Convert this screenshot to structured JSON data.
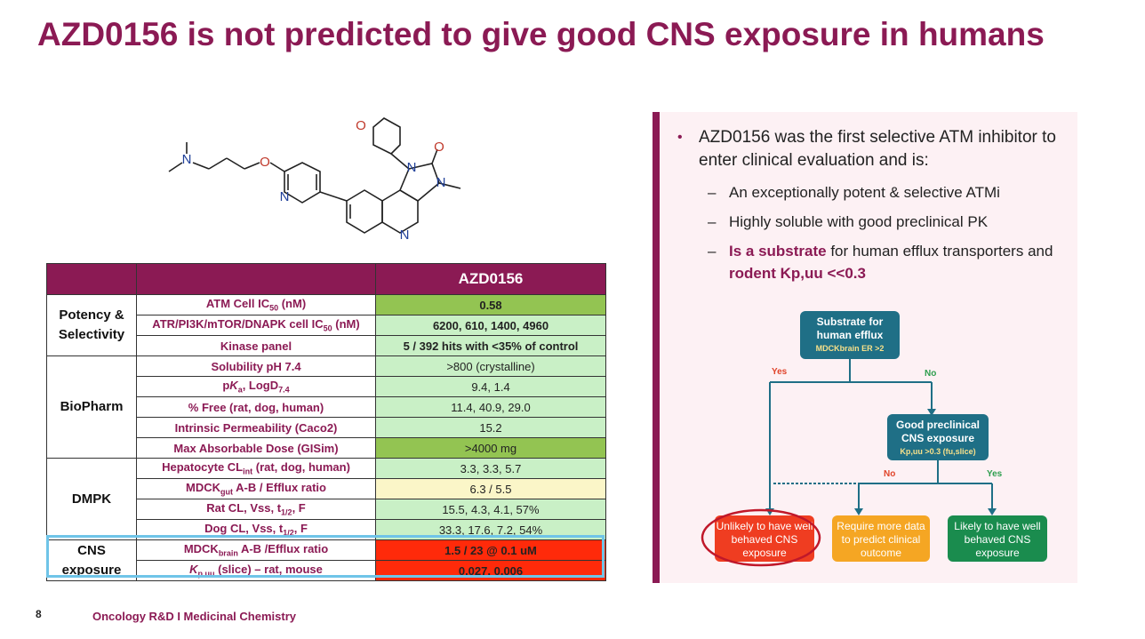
{
  "title": "AZD0156 is not predicted to give good CNS exposure in humans",
  "molecule_labels": {
    "n1": "N",
    "o1": "O",
    "o2": "O",
    "n2": "N",
    "n3": "N",
    "o3": "O",
    "n4": "N",
    "n5": "N"
  },
  "table": {
    "header_compound": "AZD0156",
    "groups": [
      {
        "category": "Potency & Selectivity",
        "rows": [
          {
            "param": "ATM Cell IC50 (nM)",
            "value": "0.58"
          },
          {
            "param": "ATR/PI3K/mTOR/DNAPK cell IC50 (nM)",
            "value": "6200, 610, 1400, 4960"
          },
          {
            "param": "Kinase panel",
            "value": "5 / 392 hits with <35% of control"
          }
        ]
      },
      {
        "category": "BioPharm",
        "rows": [
          {
            "param": "Solubility pH 7.4",
            "value": ">800 (crystalline)"
          },
          {
            "param": "pKa, LogD7.4",
            "value": "9.4, 1.4"
          },
          {
            "param": "% Free (rat, dog, human)",
            "value": "11.4, 40.9, 29.0"
          },
          {
            "param": "Intrinsic Permeability (Caco2)",
            "value": "15.2"
          },
          {
            "param": "Max Absorbable Dose (GISim)",
            "value": ">4000 mg"
          }
        ]
      },
      {
        "category": "DMPK",
        "rows": [
          {
            "param": "Hepatocyte CLint (rat, dog, human)",
            "value": "3.3, 3.3, 5.7"
          },
          {
            "param": "MDCKgut A-B / Efflux ratio",
            "value": "6.3 / 5.5"
          },
          {
            "param": "Rat CL, Vss, t1/2, F",
            "value": "15.5, 4.3, 4.1, 57%"
          },
          {
            "param": "Dog CL, Vss, t1/2, F",
            "value": "33.3, 17.6, 7.2, 54%"
          }
        ]
      },
      {
        "category": "CNS exposure",
        "rows": [
          {
            "param": "MDCKbrain A-B /Efflux ratio",
            "value": "1.5 / 23 @ 0.1 uM"
          },
          {
            "param": "Kp,uu (slice) – rat, mouse",
            "value": "0.027, 0.006"
          }
        ]
      }
    ]
  },
  "bullets": {
    "main": "AZD0156 was the first selective ATM inhibitor to enter clinical evaluation and is:",
    "sub1": "An exceptionally potent & selective ATMi",
    "sub2": "Highly soluble with good preclinical PK",
    "sub3_bold": "Is a substrate",
    "sub3_rest": " for human efflux transporters and ",
    "sub3_bold2": "rodent Kp,uu <<0.3"
  },
  "flowchart": {
    "box1_title": "Substrate for human efflux",
    "box1_sub": "MDCKbrain ER >2",
    "yes1": "Yes",
    "no1": "No",
    "box2_title": "Good preclinical CNS exposure",
    "box2_sub": "Kp,uu >0.3 (fu,slice)",
    "no2": "No",
    "yes2": "Yes",
    "out_red": "Unlikely to have well behaved CNS exposure",
    "out_orange": "Require more data to predict clinical outcome",
    "out_green": "Likely to have well behaved CNS exposure",
    "colors": {
      "teal": "#1f6f86",
      "red": "#ef3d21",
      "orange": "#f5a623",
      "green": "#1a8c4e"
    }
  },
  "footer": {
    "page": "8",
    "text": "Oncology R&D I Medicinal Chemistry"
  }
}
